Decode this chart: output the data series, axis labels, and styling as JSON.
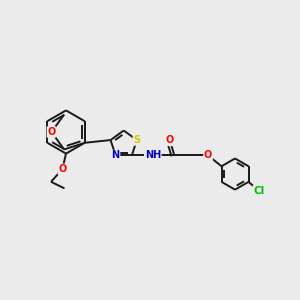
{
  "background_color": "#ebebeb",
  "bond_color": "#1a1a1a",
  "bond_lw": 1.4,
  "atom_colors": {
    "O": "#ff0000",
    "N": "#0000cc",
    "S": "#cccc00",
    "Cl": "#00bb00",
    "C": "#1a1a1a"
  },
  "font_size": 7.0,
  "fig_width": 3.0,
  "fig_height": 3.0,
  "dpi": 100
}
